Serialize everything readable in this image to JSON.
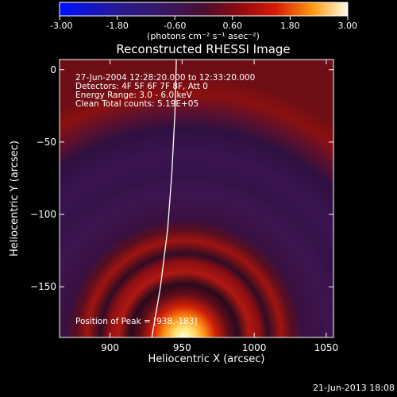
{
  "colorbar": {
    "ticks": [
      "-3.00",
      "-1.80",
      "-0.60",
      "0.60",
      "1.80",
      "3.00"
    ],
    "units_label": "(photons cm⁻² s⁻¹ asec⁻²)"
  },
  "plot": {
    "title": "Reconstructed RHESSI Image",
    "info_lines": [
      "27-Jun-2004 12:28:20.000 to 12:33:20.000",
      "Detectors: 4F 5F 6F 7F 8F, Att 0",
      "Energy Range: 3.0 - 6.0 keV",
      "Clean    Total counts: 5.19E+05"
    ],
    "peak_label": "Position of Peak = [938,-183]",
    "timestamp": "21-Jun-2013 18:08"
  },
  "chart_data": {
    "type": "heatmap",
    "title": "Reconstructed RHESSI Image",
    "xlabel": "Heliocentric X (arcsec)",
    "ylabel": "Heliocentric Y (arcsec)",
    "xlim": [
      865,
      1055
    ],
    "ylim": [
      -185,
      7
    ],
    "x_ticks": [
      {
        "value": 900,
        "label": "900"
      },
      {
        "value": 950,
        "label": "950"
      },
      {
        "value": 1000,
        "label": "1000"
      },
      {
        "value": 1050,
        "label": "1050"
      }
    ],
    "y_ticks": [
      {
        "value": 0,
        "label": "0"
      },
      {
        "value": -50,
        "label": "−50"
      },
      {
        "value": -100,
        "label": "−100"
      },
      {
        "value": -150,
        "label": "−150"
      }
    ],
    "peak": {
      "x": 938,
      "y": -183
    },
    "colorbar_range": [
      -3.0,
      3.0
    ],
    "limb_curve": [
      [
        929,
        -185
      ],
      [
        935,
        -150
      ],
      [
        940,
        -110
      ],
      [
        943,
        -70
      ],
      [
        945,
        -30
      ],
      [
        946,
        7
      ]
    ],
    "colors": {
      "background": "#000000",
      "map_base": "#3a1452",
      "ring_red": "#a4100e",
      "peak_core": "#fff8c0",
      "limb": "#ffffff"
    }
  }
}
